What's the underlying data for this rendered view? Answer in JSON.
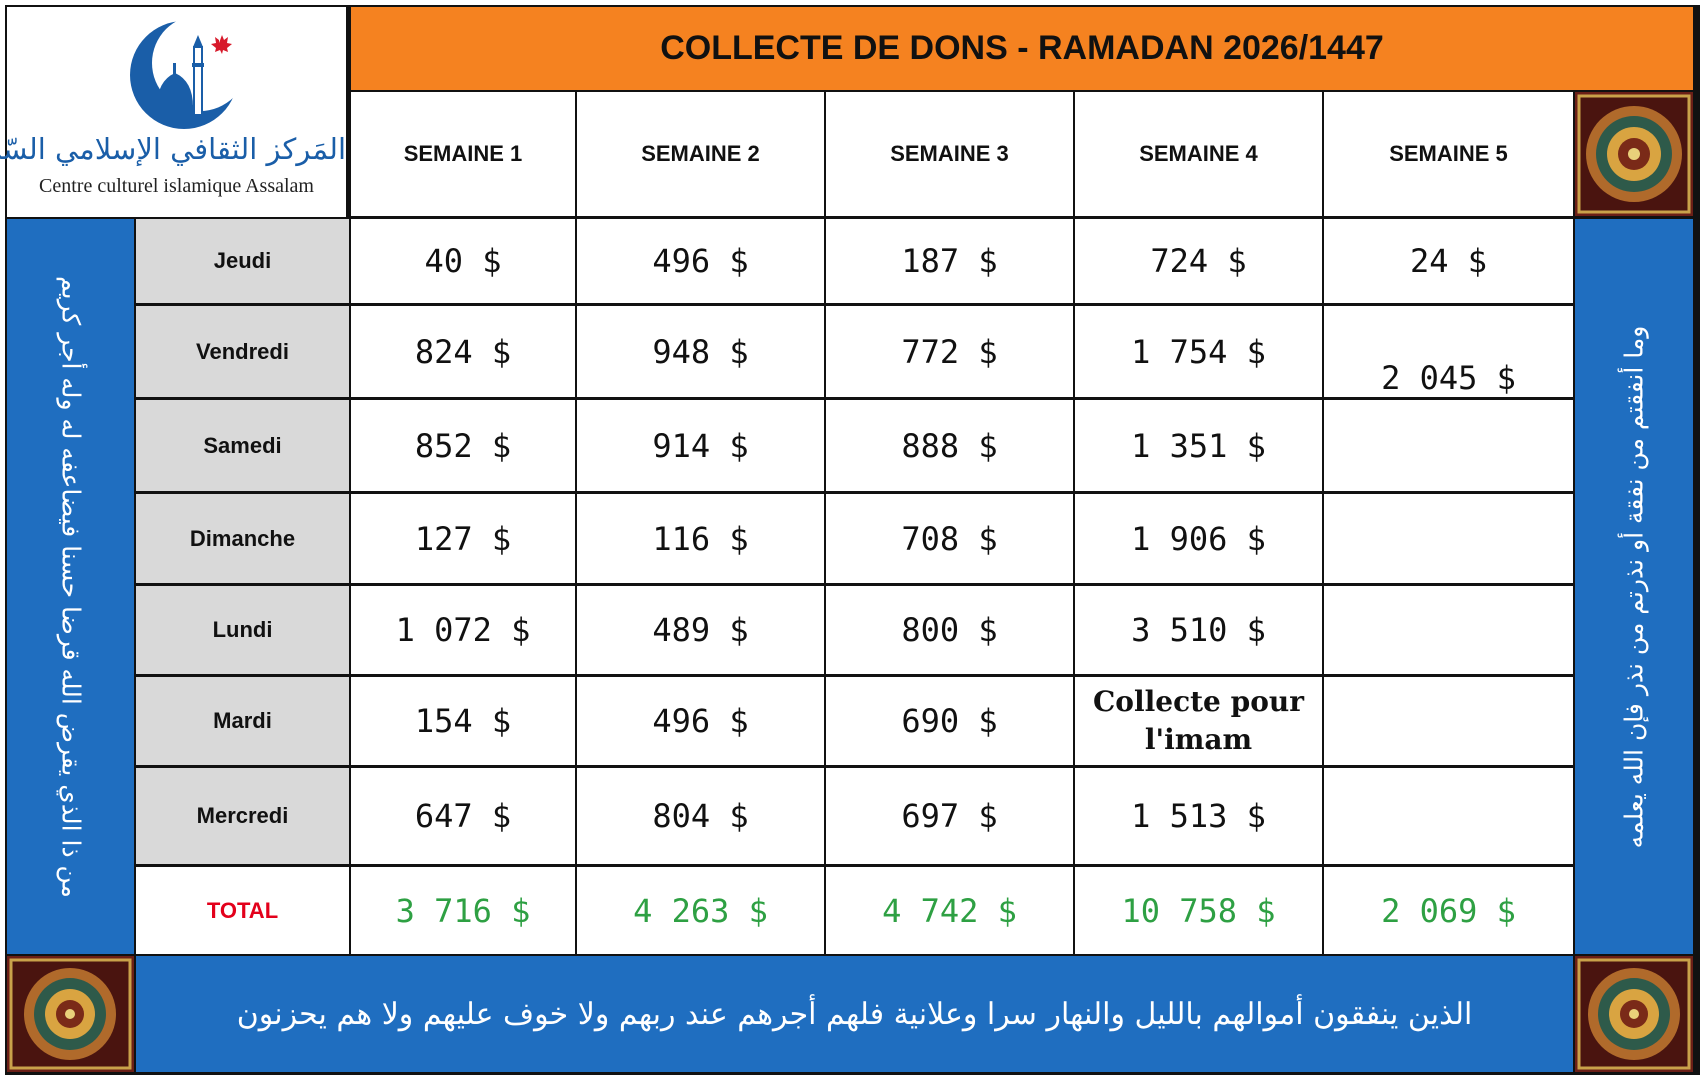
{
  "logo": {
    "arabic_name": "المَركز الثقافي الإسلامي السّلام",
    "french_name": "Centre culturel islamique Assalam"
  },
  "title": "COLLECTE DE DONS - RAMADAN 2026/1447",
  "weeks": [
    "SEMAINE 1",
    "SEMAINE 2",
    "SEMAINE 3",
    "SEMAINE 4",
    "SEMAINE 5"
  ],
  "days": [
    "Jeudi",
    "Vendredi",
    "Samedi",
    "Dimanche",
    "Lundi",
    "Mardi",
    "Mercredi"
  ],
  "total_label": "TOTAL",
  "rows": [
    [
      "40 $",
      "496 $",
      "187 $",
      "724 $",
      "24 $"
    ],
    [
      "824 $",
      "948 $",
      "772 $",
      "1 754 $",
      "2 045 $"
    ],
    [
      "852 $",
      "914 $",
      "888 $",
      "1 351 $",
      ""
    ],
    [
      "127 $",
      "116 $",
      "708 $",
      "1 906 $",
      ""
    ],
    [
      "1 072 $",
      "489 $",
      "800 $",
      "3 510 $",
      ""
    ],
    [
      "154 $",
      "496 $",
      "690 $",
      "Collecte pour l'imam",
      ""
    ],
    [
      "647 $",
      "804 $",
      "697 $",
      "1 513 $",
      ""
    ]
  ],
  "totals": [
    "3 716 $",
    "4 263 $",
    "4 742 $",
    "10 758 $",
    "2 069 $"
  ],
  "left_verse": "من ذا الذي يقرض الله قرضا حسنا فيضاعفه له وله أجر كريم",
  "right_verse": "وما أنفقتم من نفقة أو نذرتم من نذر فإن الله يعلمه",
  "bottom_verse": "الذين ينفقون أموالهم بالليل والنهار سرا وعلانية فلهم أجرهم عند ربهم ولا خوف عليهم ولا هم يحزنون",
  "colors": {
    "title_bar": "#f58220",
    "side_panels": "#1f6ec0",
    "day_column": "#d9d9d9",
    "total_label": "#e3001b",
    "total_values": "#2ea043",
    "logo_blue": "#1a5ea8"
  }
}
